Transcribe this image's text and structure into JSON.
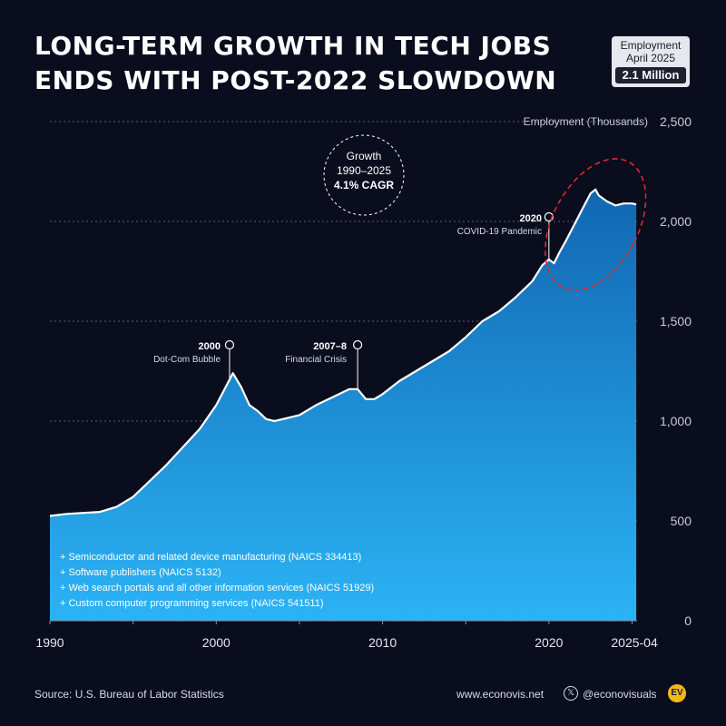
{
  "title": {
    "line1": "LONG-TERM GROWTH IN TECH JOBS",
    "line2": "ENDS WITH POST-2022 SLOWDOWN"
  },
  "badge": {
    "line1": "Employment",
    "line2": "April 2025",
    "value": "2.1 Million"
  },
  "growth_circle": {
    "line1": "Growth",
    "line2": "1990–2025",
    "line3": "4.1% CAGR"
  },
  "events": [
    {
      "year_label": "2000",
      "label": "Dot-Com Bubble"
    },
    {
      "year_label": "2007–8",
      "label": "Financial Crisis"
    },
    {
      "year_label": "2020",
      "label": "COVID-19 Pandemic"
    }
  ],
  "notes": [
    "+ Semiconductor and related device manufacturing (NAICS  334413)",
    "+ Software publishers (NAICS 5132)",
    "+ Web search portals and all other information services (NAICS 51929)",
    "+ Custom computer programming services (NAICS 541511)"
  ],
  "footer": {
    "source": "Source: U.S. Bureau of Labor Statistics",
    "website": "www.econovis.net",
    "handle": "@econovisuals",
    "x_icon": "x-logo-icon",
    "logo_text": "EV"
  },
  "colors": {
    "background": "#0a0d1e",
    "area_top": "#1167b1",
    "area_bottom": "#2bb3f5",
    "line": "#ffffff",
    "highlight_ellipse": "#e02828"
  },
  "chart_data": {
    "type": "area",
    "ylabel": "Employment (Thousands)",
    "xlim": [
      1990,
      2025.3
    ],
    "ylim": [
      0,
      2500
    ],
    "xticks": [
      1990,
      2000,
      2010,
      2020,
      2025.25
    ],
    "xtick_labels": [
      "1990",
      "2000",
      "2010",
      "2020",
      "2025-04"
    ],
    "yticks": [
      0,
      500,
      1000,
      1500,
      2000,
      2500
    ],
    "ytick_labels": [
      "0",
      "500",
      "1,000",
      "1,500",
      "2,000",
      "2,500"
    ],
    "grid": true,
    "events_x": [
      2000.8,
      2008.5,
      2020.0
    ],
    "highlight": {
      "x_range": [
        2020.3,
        2025.3
      ],
      "y_range": [
        1650,
        2320
      ]
    },
    "x": [
      1990,
      1991,
      1992,
      1993,
      1994,
      1995,
      1996,
      1997,
      1998,
      1999,
      2000,
      2000.5,
      2001,
      2001.5,
      2002,
      2002.5,
      2003,
      2003.5,
      2004,
      2005,
      2006,
      2007,
      2008,
      2008.5,
      2009,
      2009.5,
      2010,
      2011,
      2012,
      2013,
      2014,
      2015,
      2016,
      2017,
      2018,
      2019,
      2019.6,
      2020,
      2020.3,
      2020.6,
      2021,
      2021.5,
      2022,
      2022.5,
      2022.8,
      2023,
      2023.5,
      2024,
      2024.5,
      2025,
      2025.25
    ],
    "values": [
      525,
      535,
      540,
      545,
      570,
      620,
      700,
      780,
      870,
      960,
      1080,
      1160,
      1240,
      1170,
      1080,
      1050,
      1010,
      1000,
      1010,
      1030,
      1080,
      1120,
      1160,
      1160,
      1110,
      1110,
      1135,
      1200,
      1250,
      1300,
      1350,
      1420,
      1500,
      1550,
      1620,
      1700,
      1780,
      1810,
      1790,
      1840,
      1900,
      1980,
      2060,
      2140,
      2160,
      2130,
      2100,
      2080,
      2090,
      2090,
      2085
    ]
  }
}
